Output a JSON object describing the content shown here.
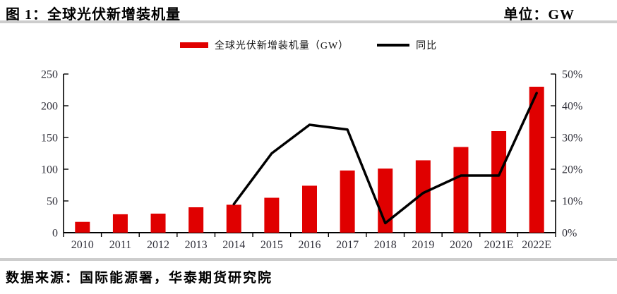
{
  "header": {
    "title": "图 1：全球光伏新增装机量",
    "unit": "单位：GW"
  },
  "legend": [
    {
      "label": "全球光伏新增装机量（GW）",
      "type": "bar"
    },
    {
      "label": "同比",
      "type": "line"
    }
  ],
  "footer": {
    "source": "数据来源：国际能源署，华泰期货研究院"
  },
  "colors": {
    "bar": "#e00000",
    "line": "#000000",
    "axis": "#000000",
    "tick_label": "#30303a",
    "divider": "#cdcdcd"
  },
  "chart_data": {
    "type": "bar",
    "title": "全球光伏新增装机量",
    "unit": "GW",
    "categories": [
      "2010",
      "2011",
      "2012",
      "2013",
      "2014",
      "2015",
      "2016",
      "2017",
      "2018",
      "2019",
      "2020",
      "2021E",
      "2022E"
    ],
    "series": [
      {
        "name": "全球光伏新增装机量（GW）",
        "type": "bar",
        "axis": "left",
        "values": [
          17,
          29,
          30,
          40,
          44,
          55,
          74,
          98,
          101,
          114,
          135,
          160,
          230
        ]
      },
      {
        "name": "同比",
        "type": "line",
        "axis": "right",
        "unit": "%",
        "values": [
          null,
          null,
          null,
          null,
          9,
          25,
          34,
          32.5,
          3,
          12.5,
          18,
          18,
          44
        ]
      }
    ],
    "left_axis": {
      "ticks": [
        0,
        50,
        100,
        150,
        200,
        250
      ],
      "range": [
        0,
        250
      ]
    },
    "right_axis": {
      "ticks": [
        "0%",
        "10%",
        "20%",
        "30%",
        "40%",
        "50%"
      ],
      "range": [
        0,
        50
      ]
    },
    "grid": false,
    "legend_position": "top-center"
  }
}
